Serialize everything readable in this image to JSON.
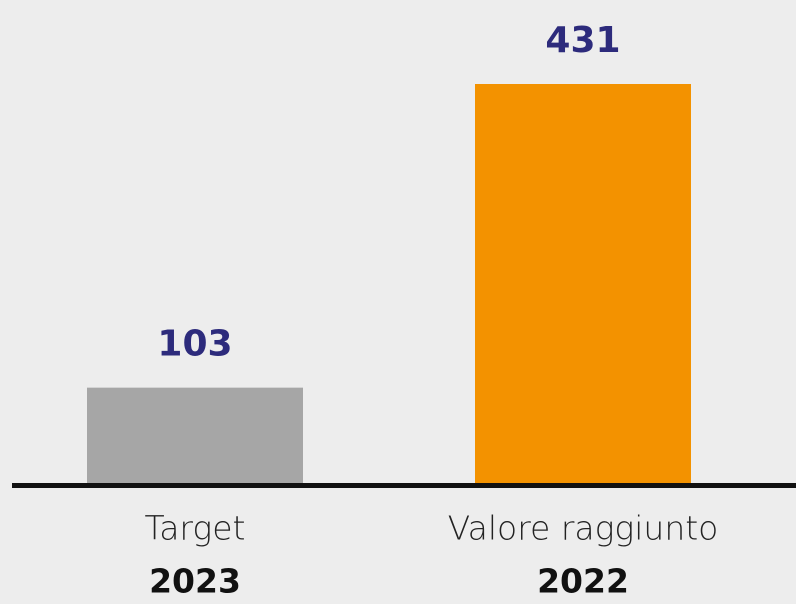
{
  "chart_data": {
    "type": "bar",
    "categories": [
      "Target",
      "Valore raggiunto"
    ],
    "sublabels": [
      "2023",
      "2022"
    ],
    "values": [
      103,
      431
    ],
    "colors": [
      "#a6a6a6",
      "#f39200"
    ]
  }
}
